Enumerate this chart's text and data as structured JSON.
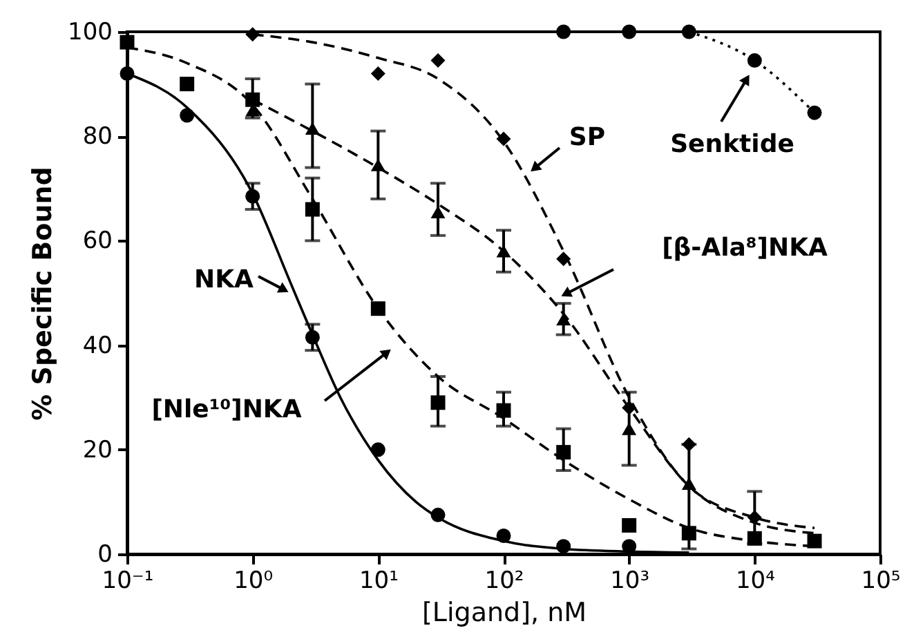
{
  "chart_data": {
    "type": "scatter",
    "xlabel": "[Ligand], nM",
    "ylabel": "% Specific Bound",
    "log": "x",
    "grid": false,
    "xlim": [
      0.1,
      100000
    ],
    "xticks": [
      {
        "value": 0.1,
        "label": "10⁻¹"
      },
      {
        "value": 1,
        "label": "10⁰"
      },
      {
        "value": 10,
        "label": "10¹"
      },
      {
        "value": 100,
        "label": "10²"
      },
      {
        "value": 1000,
        "label": "10³"
      },
      {
        "value": 10000,
        "label": "10⁴"
      },
      {
        "value": 100000,
        "label": "10⁵"
      }
    ],
    "ylim": [
      0,
      100
    ],
    "yticks": [
      0,
      20,
      40,
      60,
      80,
      100
    ],
    "series": [
      {
        "type": "line",
        "color": "#000000",
        "line_style": "solid",
        "x": [
          0.1,
          0.3,
          1,
          2,
          3,
          5,
          10,
          20,
          30,
          100,
          300,
          1000,
          3000
        ],
        "values": [
          92,
          85.5,
          69,
          52,
          42,
          30,
          18,
          10,
          7,
          2.5,
          1,
          0.5,
          0.3
        ]
      },
      {
        "type": "line",
        "color": "#000000",
        "line_style": "dashed",
        "x": [
          0.1,
          0.3,
          1,
          3,
          10,
          30,
          100,
          300,
          1000,
          3000,
          10000,
          30000
        ],
        "values": [
          97,
          94,
          86,
          68,
          47,
          34,
          26,
          18,
          10.5,
          5,
          2.5,
          1.5
        ]
      },
      {
        "type": "line",
        "color": "#000000",
        "line_style": "dashed",
        "x": [
          1,
          3,
          10,
          30,
          100,
          300,
          1000,
          3000,
          10000,
          30000
        ],
        "values": [
          87,
          81,
          74,
          67,
          58,
          46,
          28,
          13,
          6,
          4
        ]
      },
      {
        "type": "line",
        "color": "#000000",
        "line_style": "dashed",
        "x": [
          1,
          3,
          10,
          30,
          100,
          300,
          1000,
          3000,
          10000,
          30000
        ],
        "values": [
          99.5,
          98,
          95,
          91,
          79,
          58,
          30,
          13,
          7,
          5
        ]
      },
      {
        "type": "line",
        "color": "#000000",
        "line_style": "dotted",
        "x": [
          3000,
          10000,
          30000
        ],
        "values": [
          100,
          94.5,
          84.5
        ]
      },
      {
        "type": "scatter",
        "color": "#000000",
        "marker": "circle",
        "x": [
          0.1,
          0.3,
          1,
          3,
          10,
          30,
          100,
          300,
          1000
        ],
        "values": [
          92,
          84,
          68.5,
          41.5,
          20,
          7.5,
          3.5,
          1.5,
          1.5
        ],
        "errors": [
          null,
          null,
          [
            66,
            71
          ],
          [
            39,
            44
          ],
          null,
          null,
          null,
          null,
          null
        ]
      },
      {
        "type": "scatter",
        "color": "#000000",
        "marker": "square",
        "x": [
          0.1,
          0.3,
          1,
          3,
          10,
          30,
          100,
          300,
          1000,
          3000,
          10000,
          30000
        ],
        "values": [
          98,
          90,
          87,
          66,
          47,
          29,
          27.5,
          19.5,
          5.5,
          4,
          3,
          2.5
        ],
        "errors": [
          null,
          null,
          [
            83.5,
            91
          ],
          [
            60,
            72
          ],
          null,
          [
            24.5,
            34
          ],
          [
            24.5,
            31
          ],
          [
            16,
            24
          ],
          null,
          null,
          null,
          null
        ]
      },
      {
        "type": "scatter",
        "color": "#000000",
        "marker": "triangle",
        "x": [
          1,
          3,
          10,
          30,
          100,
          300,
          1000,
          3000
        ],
        "values": [
          85,
          81.5,
          74.5,
          65.5,
          58,
          45,
          24,
          13.5
        ],
        "errors": [
          null,
          [
            74,
            90
          ],
          [
            68,
            81
          ],
          [
            61,
            71
          ],
          [
            54,
            62
          ],
          [
            42,
            48
          ],
          [
            17,
            31
          ],
          [
            1,
            21
          ]
        ]
      },
      {
        "type": "scatter",
        "color": "#000000",
        "marker": "diamond",
        "x": [
          1,
          10,
          30,
          100,
          300,
          1000,
          3000,
          10000
        ],
        "values": [
          99.5,
          92,
          94.5,
          79.5,
          56.5,
          28,
          21,
          7
        ],
        "errors": [
          null,
          null,
          null,
          null,
          null,
          null,
          null,
          [
            2,
            12
          ]
        ]
      },
      {
        "type": "scatter",
        "color": "#000000",
        "marker": "circle",
        "x": [
          300,
          1000,
          3000,
          10000,
          30000
        ],
        "values": [
          100,
          100,
          100,
          94.5,
          84.5
        ]
      }
    ],
    "annotations": [
      "NKA",
      "[Nle¹⁰]NKA",
      "SP",
      "[β-Ala⁸]NKA",
      "Senktide"
    ]
  }
}
